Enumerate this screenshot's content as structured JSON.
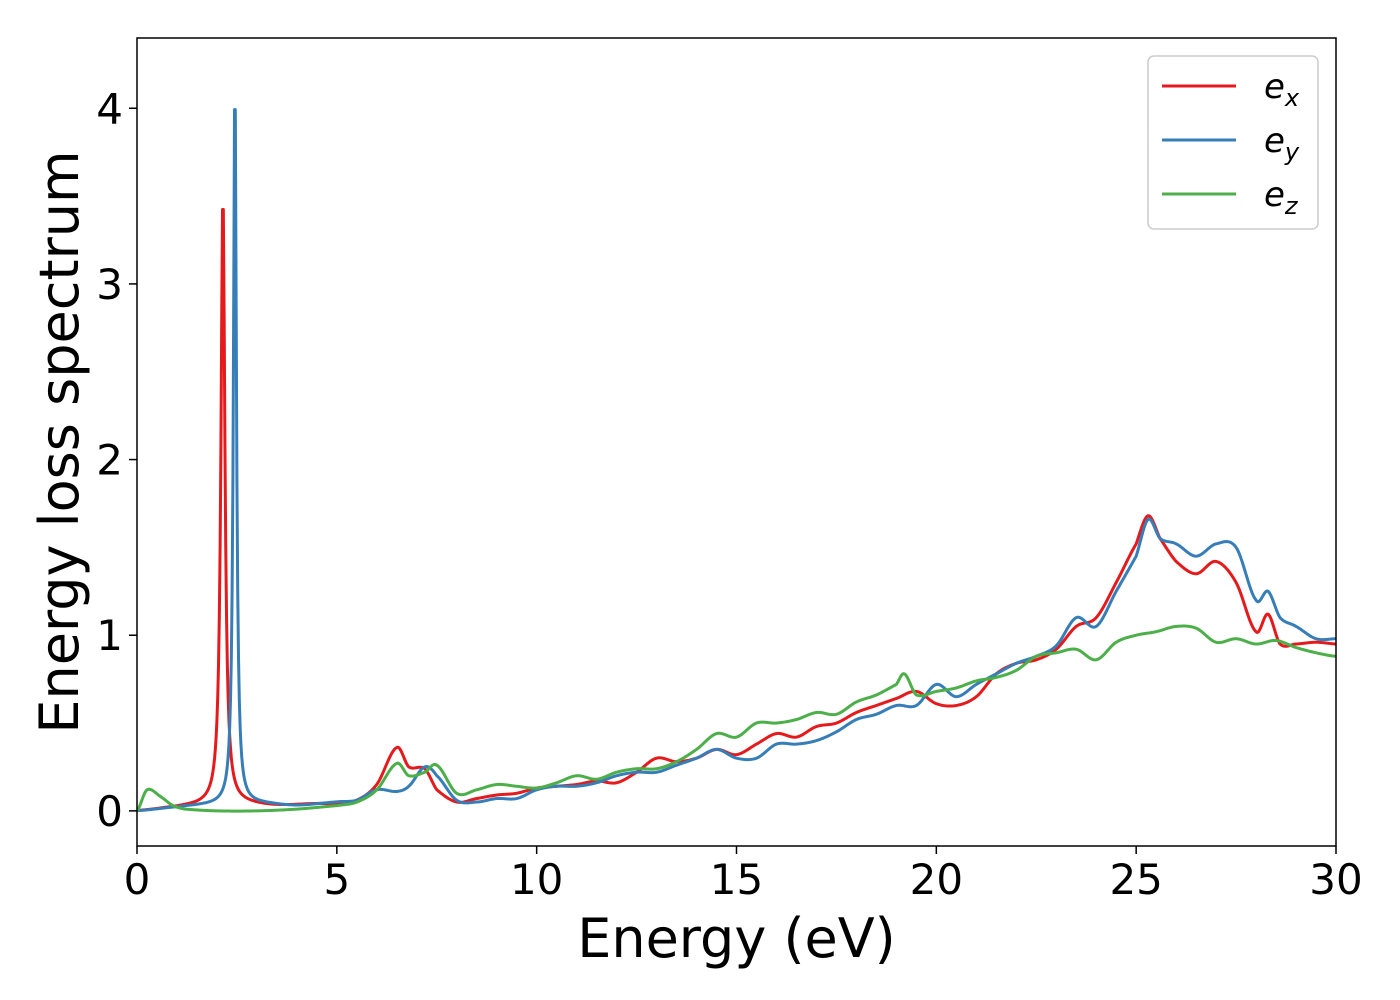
{
  "chart_data": {
    "type": "line",
    "title": "",
    "xlabel": "Energy (eV)",
    "ylabel": "Energy loss spectrum",
    "xlim": [
      0,
      30
    ],
    "ylim": [
      -0.2,
      4.4
    ],
    "xticks": [
      0,
      5,
      10,
      15,
      20,
      25,
      30
    ],
    "yticks": [
      0,
      1,
      2,
      3,
      4
    ],
    "grid": false,
    "legend_position": "top-right",
    "series": [
      {
        "name": "e",
        "subscript": "x",
        "color": "#e41a1c",
        "peak": {
          "x": 2.15,
          "height": 3.48,
          "gamma": 0.06
        },
        "x": [
          0,
          1,
          1.6,
          2.5,
          3.5,
          4.5,
          5.0,
          5.5,
          6.0,
          6.5,
          6.8,
          7.2,
          7.5,
          8.0,
          8.5,
          9.0,
          9.5,
          10.0,
          10.5,
          11.0,
          11.5,
          12.0,
          12.5,
          13.0,
          13.5,
          14.0,
          14.5,
          15.0,
          15.5,
          16.0,
          16.5,
          17.0,
          17.5,
          18.0,
          18.5,
          19.0,
          19.5,
          20.0,
          20.5,
          21.0,
          21.5,
          22.0,
          22.5,
          23.0,
          23.5,
          24.0,
          24.5,
          25.0,
          25.3,
          25.6,
          26.0,
          26.5,
          27.0,
          27.5,
          28.0,
          28.3,
          28.6,
          29.0,
          29.5,
          30.0
        ],
        "y": [
          0.0,
          0.02,
          0.03,
          0.04,
          0.03,
          0.04,
          0.04,
          0.06,
          0.15,
          0.36,
          0.25,
          0.24,
          0.12,
          0.05,
          0.07,
          0.09,
          0.1,
          0.13,
          0.14,
          0.15,
          0.17,
          0.16,
          0.22,
          0.3,
          0.28,
          0.3,
          0.35,
          0.32,
          0.38,
          0.44,
          0.42,
          0.48,
          0.5,
          0.56,
          0.6,
          0.64,
          0.68,
          0.61,
          0.6,
          0.65,
          0.78,
          0.84,
          0.86,
          0.92,
          1.05,
          1.1,
          1.3,
          1.52,
          1.68,
          1.55,
          1.42,
          1.35,
          1.42,
          1.3,
          1.02,
          1.12,
          0.95,
          0.95,
          0.96,
          0.95
        ]
      },
      {
        "name": "e",
        "subscript": "y",
        "color": "#377eb8",
        "peak": {
          "x": 2.45,
          "height": 4.15,
          "gamma": 0.045
        },
        "x": [
          0,
          1,
          1.6,
          3.0,
          4.0,
          5.0,
          5.5,
          6.0,
          6.5,
          6.8,
          7.2,
          7.5,
          8.0,
          8.5,
          9.0,
          9.5,
          10.0,
          10.5,
          11.0,
          11.5,
          12.0,
          12.5,
          13.0,
          13.5,
          14.0,
          14.5,
          15.0,
          15.5,
          16.0,
          16.5,
          17.0,
          17.5,
          18.0,
          18.5,
          19.0,
          19.5,
          20.0,
          20.5,
          21.0,
          21.5,
          22.0,
          22.5,
          23.0,
          23.5,
          24.0,
          24.5,
          25.0,
          25.3,
          25.6,
          26.0,
          26.5,
          27.0,
          27.5,
          28.0,
          28.3,
          28.6,
          29.0,
          29.5,
          30.0
        ],
        "y": [
          0.0,
          0.02,
          0.03,
          0.04,
          0.03,
          0.05,
          0.06,
          0.12,
          0.11,
          0.14,
          0.25,
          0.2,
          0.06,
          0.05,
          0.07,
          0.07,
          0.12,
          0.14,
          0.14,
          0.16,
          0.2,
          0.22,
          0.22,
          0.26,
          0.3,
          0.35,
          0.3,
          0.3,
          0.38,
          0.38,
          0.4,
          0.45,
          0.52,
          0.55,
          0.6,
          0.6,
          0.72,
          0.65,
          0.72,
          0.78,
          0.84,
          0.88,
          0.94,
          1.1,
          1.05,
          1.25,
          1.45,
          1.66,
          1.55,
          1.52,
          1.45,
          1.52,
          1.5,
          1.2,
          1.25,
          1.1,
          1.05,
          0.98,
          0.98
        ]
      },
      {
        "name": "e",
        "subscript": "z",
        "color": "#4daf4a",
        "x": [
          0,
          0.25,
          0.6,
          0.9,
          1.2,
          2.0,
          3.0,
          4.0,
          5.0,
          5.5,
          6.0,
          6.5,
          6.8,
          7.2,
          7.5,
          8.0,
          8.5,
          9.0,
          9.5,
          10.0,
          10.5,
          11.0,
          11.5,
          12.0,
          12.5,
          13.0,
          13.5,
          14.0,
          14.5,
          15.0,
          15.5,
          16.0,
          16.5,
          17.0,
          17.5,
          18.0,
          18.5,
          19.0,
          19.2,
          19.5,
          20.0,
          20.5,
          21.0,
          21.5,
          22.0,
          22.5,
          23.0,
          23.5,
          24.0,
          24.5,
          25.0,
          25.5,
          26.0,
          26.5,
          27.0,
          27.5,
          28.0,
          28.5,
          29.0,
          29.5,
          30.0
        ],
        "y": [
          0.0,
          0.12,
          0.08,
          0.03,
          0.01,
          0.0,
          0.0,
          0.01,
          0.03,
          0.05,
          0.12,
          0.27,
          0.2,
          0.22,
          0.26,
          0.1,
          0.12,
          0.15,
          0.14,
          0.13,
          0.16,
          0.2,
          0.18,
          0.22,
          0.24,
          0.24,
          0.28,
          0.35,
          0.44,
          0.42,
          0.5,
          0.5,
          0.52,
          0.56,
          0.55,
          0.62,
          0.66,
          0.72,
          0.78,
          0.66,
          0.68,
          0.7,
          0.74,
          0.76,
          0.8,
          0.88,
          0.9,
          0.92,
          0.86,
          0.96,
          1.0,
          1.02,
          1.05,
          1.04,
          0.96,
          0.98,
          0.95,
          0.97,
          0.93,
          0.9,
          0.88
        ]
      }
    ]
  }
}
